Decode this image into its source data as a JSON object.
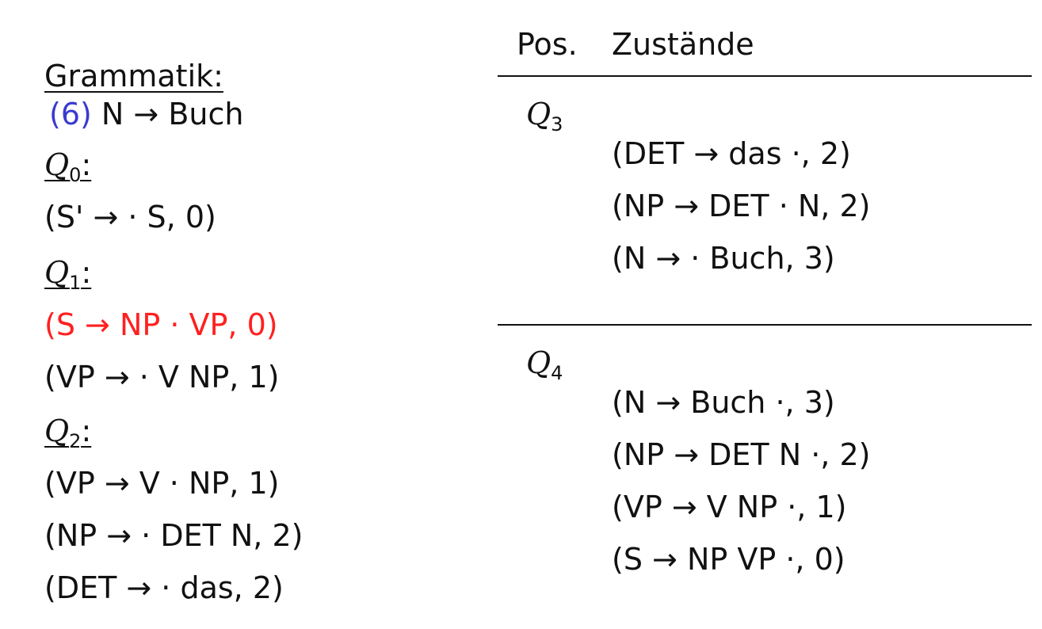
{
  "left": {
    "heading": "Grammatik:",
    "rule": {
      "number": "(6)",
      "text": "N → Buch"
    },
    "sections": [
      {
        "label": "Q",
        "sub": "0",
        "items": [
          "(S' → · S, 0)"
        ]
      },
      {
        "label": "Q",
        "sub": "1",
        "items": [
          "(S → NP  ·  VP, 0)",
          "(VP → · V NP, 1)"
        ]
      },
      {
        "label": "Q",
        "sub": "2",
        "items": [
          "(VP → V  ·  NP, 1)",
          "(NP → · DET N, 2)",
          "(DET → · das, 2)"
        ]
      }
    ]
  },
  "right": {
    "headers": {
      "pos": "Pos.",
      "states": "Zustände"
    },
    "rows": [
      {
        "label": "Q",
        "sub": "3",
        "items": [
          "(DET → das ·, 2)",
          "(NP → DET  ·  N, 2)",
          "(N → · Buch, 3)"
        ]
      },
      {
        "label": "Q",
        "sub": "4",
        "items": [
          "(N → Buch ·, 3)",
          "(NP → DET N ·, 2)",
          "(VP → V NP ·, 1)",
          "(S → NP VP ·, 0)"
        ]
      }
    ]
  },
  "colors": {
    "highlight": "#ff2020",
    "rule_number": "#3a3ad0",
    "text": "#111111"
  }
}
